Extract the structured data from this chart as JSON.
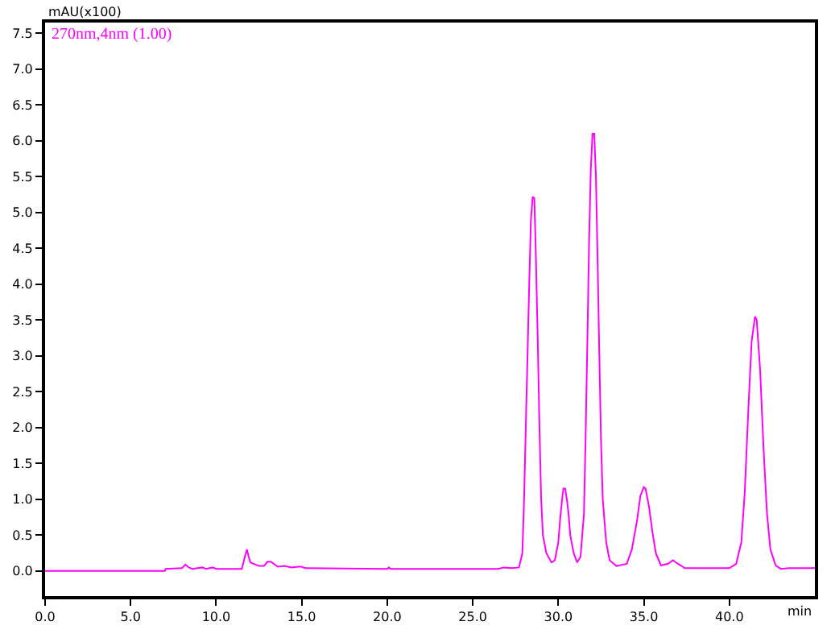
{
  "chart_data": {
    "type": "line",
    "ylabel": "mAU(x100)",
    "xlabel": "min",
    "annotations": [
      "270nm,4nm (1.00)"
    ],
    "xlim": [
      0,
      45
    ],
    "ylim": [
      -0.35,
      7.65
    ],
    "marker": "none",
    "line_style": "solid",
    "xticks": [
      {
        "value": 0,
        "label": "0.0"
      },
      {
        "value": 5,
        "label": "5.0"
      },
      {
        "value": 10,
        "label": "10.0"
      },
      {
        "value": 15,
        "label": "15.0"
      },
      {
        "value": 20,
        "label": "20.0"
      },
      {
        "value": 25,
        "label": "25.0"
      },
      {
        "value": 30,
        "label": "30.0"
      },
      {
        "value": 35,
        "label": "35.0"
      },
      {
        "value": 40,
        "label": "40.0"
      }
    ],
    "yticks": [
      {
        "value": 0,
        "label": "0.0"
      },
      0.5,
      {
        "value": 1,
        "label": "1.0"
      },
      1.5,
      {
        "value": 2,
        "label": "2.0"
      },
      2.5,
      {
        "value": 3,
        "label": "3.0"
      },
      3.5,
      {
        "value": 4,
        "label": "4.0"
      },
      4.5,
      {
        "value": 5,
        "label": "5.0"
      },
      5.5,
      {
        "value": 6,
        "label": "6.0"
      },
      6.5,
      {
        "value": 7,
        "label": "7.0"
      },
      7.5
    ],
    "x": [
      0,
      7.0,
      7.05,
      8.0,
      8.2,
      8.4,
      8.6,
      9.2,
      9.4,
      9.8,
      10.0,
      11.5,
      11.7,
      11.8,
      11.9,
      12.0,
      12.5,
      12.8,
      13.0,
      13.2,
      13.6,
      14.0,
      14.4,
      14.8,
      15.0,
      15.2,
      20.0,
      20.1,
      20.2,
      26.0,
      26.5,
      26.8,
      27.3,
      27.7,
      27.9,
      28.0,
      28.1,
      28.2,
      28.3,
      28.4,
      28.5,
      28.6,
      28.7,
      28.8,
      28.9,
      29.0,
      29.1,
      29.3,
      29.6,
      29.8,
      30.0,
      30.1,
      30.2,
      30.3,
      30.4,
      30.5,
      30.6,
      30.7,
      30.9,
      31.1,
      31.3,
      31.5,
      31.6,
      31.7,
      31.8,
      31.9,
      32.0,
      32.1,
      32.2,
      32.3,
      32.4,
      32.5,
      32.6,
      32.8,
      33.0,
      33.4,
      34.0,
      34.3,
      34.6,
      34.8,
      35.0,
      35.1,
      35.3,
      35.5,
      35.7,
      36.0,
      36.4,
      36.7,
      37.0,
      37.4,
      40.0,
      40.4,
      40.7,
      40.9,
      41.1,
      41.3,
      41.5,
      41.6,
      41.8,
      42.0,
      42.2,
      42.4,
      42.7,
      43.0,
      43.5,
      45.0
    ],
    "series": [
      {
        "color": "#ff00ff",
        "values": [
          0,
          0,
          0.03,
          0.04,
          0.09,
          0.05,
          0.03,
          0.05,
          0.03,
          0.05,
          0.03,
          0.03,
          0.22,
          0.3,
          0.2,
          0.12,
          0.07,
          0.07,
          0.13,
          0.13,
          0.06,
          0.07,
          0.05,
          0.06,
          0.06,
          0.04,
          0.03,
          0.05,
          0.03,
          0.03,
          0.03,
          0.05,
          0.04,
          0.05,
          0.25,
          1.0,
          2.0,
          3.0,
          4.0,
          4.9,
          5.22,
          5.2,
          4.3,
          3.2,
          2.0,
          1.0,
          0.5,
          0.25,
          0.12,
          0.15,
          0.4,
          0.7,
          0.95,
          1.15,
          1.15,
          1.0,
          0.8,
          0.5,
          0.25,
          0.12,
          0.2,
          0.8,
          1.9,
          3.2,
          4.6,
          5.6,
          6.1,
          6.1,
          5.5,
          4.3,
          3.0,
          1.8,
          1.0,
          0.4,
          0.15,
          0.07,
          0.1,
          0.3,
          0.7,
          1.05,
          1.17,
          1.15,
          0.9,
          0.55,
          0.25,
          0.08,
          0.1,
          0.15,
          0.1,
          0.04,
          0.04,
          0.1,
          0.4,
          1.1,
          2.2,
          3.2,
          3.55,
          3.5,
          2.8,
          1.7,
          0.8,
          0.3,
          0.08,
          0.03,
          0.04,
          0.04
        ]
      }
    ]
  }
}
